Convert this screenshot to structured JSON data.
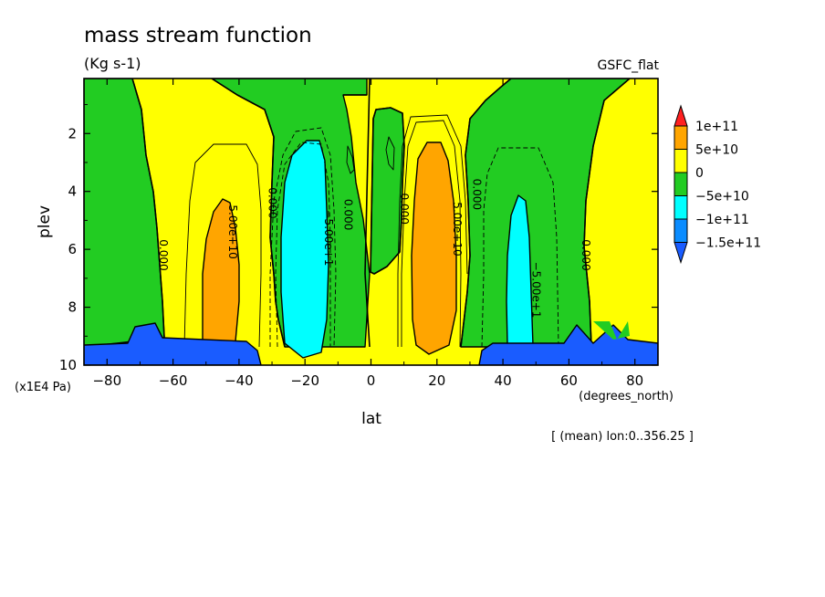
{
  "chart_data": {
    "type": "contour",
    "title": "mass stream function",
    "units": "(Kg s-1)",
    "dataset": "GSFC_flat",
    "xlabel": "lat",
    "xunits": "(degrees_north)",
    "ylabel": "plev",
    "yunits": "(x1E4 Pa)",
    "note": "[ (mean) lon:0..356.25 ]",
    "xlim": [
      -87,
      87
    ],
    "ylim": [
      10,
      0.1
    ],
    "xticks": [
      "-80",
      "-60",
      "-40",
      "-20",
      "0",
      "20",
      "40",
      "60",
      "80"
    ],
    "yticks": [
      "2",
      "4",
      "6",
      "8",
      "10"
    ],
    "colorbar": {
      "labels": [
        "1e+11",
        "5e+10",
        "0",
        "-5e+10",
        "-1e+11",
        "-1.5e+11"
      ],
      "colors": [
        "#ff2020",
        "#ffa500",
        "#ffff00",
        "#22cc22",
        "#00ffff",
        "#0a8cff",
        "#1a5cff"
      ]
    },
    "contour_labels": [
      {
        "text": "0.000",
        "lat": -64,
        "plev": 6.2
      },
      {
        "text": "5.00e+10",
        "lat": -43,
        "plev": 5.4
      },
      {
        "text": "0.000",
        "lat": -31,
        "plev": 4.4
      },
      {
        "text": "-5.00e+1",
        "lat": -14,
        "plev": 5.6
      },
      {
        "text": "0.000",
        "lat": -8,
        "plev": 4.8
      },
      {
        "text": "0.000",
        "lat": 9,
        "plev": 4.6
      },
      {
        "text": "5.00e+10",
        "lat": 25,
        "plev": 5.3
      },
      {
        "text": "0.000",
        "lat": 31,
        "plev": 4.1
      },
      {
        "text": "-5.00e+1",
        "lat": 49,
        "plev": 7.4
      },
      {
        "text": "0.000",
        "lat": 64,
        "plev": 6.2
      }
    ]
  }
}
